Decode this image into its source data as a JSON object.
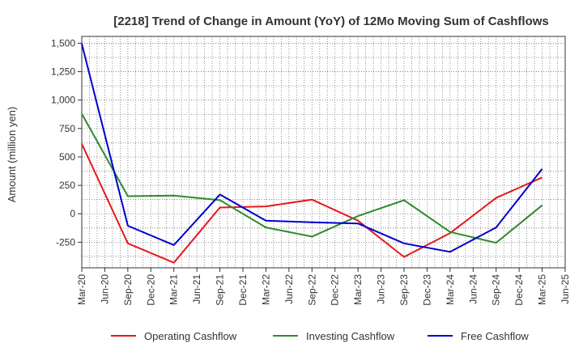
{
  "chart_data": {
    "type": "line",
    "title": "[2218]  Trend of Change in Amount (YoY) of 12Mo Moving Sum of Cashflows",
    "xlabel": "",
    "ylabel": "Amount (million yen)",
    "ylim": [
      -475,
      1560
    ],
    "yticks": [
      -250,
      0,
      250,
      500,
      750,
      1000,
      1250,
      1500
    ],
    "ytick_labels": [
      "-250",
      "0",
      "250",
      "500",
      "750",
      "1,000",
      "1,250",
      "1,500"
    ],
    "grid": true,
    "legend_position": "bottom",
    "categories": [
      "Mar-20",
      "Jun-20",
      "Sep-20",
      "Dec-20",
      "Mar-21",
      "Jun-21",
      "Sep-21",
      "Dec-21",
      "Mar-22",
      "Jun-22",
      "Sep-22",
      "Dec-22",
      "Mar-23",
      "Jun-23",
      "Sep-23",
      "Dec-23",
      "Mar-24",
      "Jun-24",
      "Sep-24",
      "Dec-24",
      "Mar-25",
      "Jun-25"
    ],
    "series": [
      {
        "name": "Operating Cashflow",
        "color": "#e41a1c",
        "values": [
          615,
          null,
          -260,
          null,
          -430,
          null,
          55,
          null,
          65,
          null,
          125,
          null,
          -60,
          null,
          -380,
          null,
          -170,
          null,
          140,
          null,
          320,
          null
        ]
      },
      {
        "name": "Investing Cashflow",
        "color": "#2e8b2e",
        "values": [
          880,
          null,
          155,
          null,
          160,
          null,
          120,
          null,
          -120,
          null,
          -200,
          null,
          -20,
          null,
          120,
          null,
          -160,
          null,
          -255,
          null,
          75,
          null
        ]
      },
      {
        "name": "Free Cashflow",
        "color": "#0000cc",
        "values": [
          1495,
          null,
          -105,
          null,
          -275,
          null,
          170,
          null,
          -60,
          null,
          -75,
          null,
          -85,
          null,
          -260,
          null,
          -335,
          null,
          -120,
          null,
          395,
          null
        ]
      }
    ]
  }
}
